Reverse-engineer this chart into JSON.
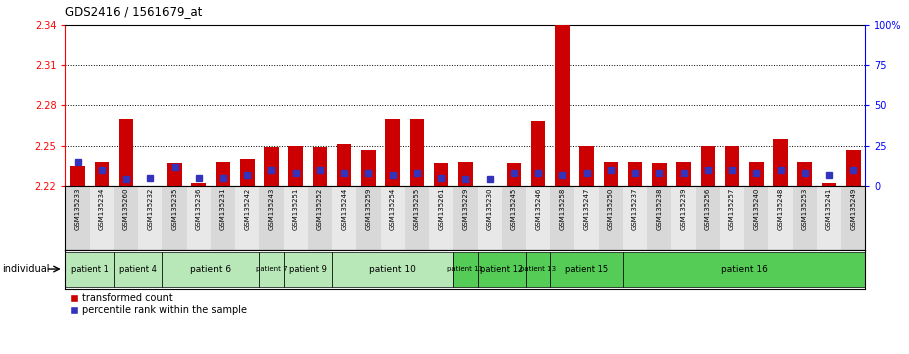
{
  "title": "GDS2416 / 1561679_at",
  "samples": [
    "GSM135233",
    "GSM135234",
    "GSM135260",
    "GSM135232",
    "GSM135235",
    "GSM135236",
    "GSM135231",
    "GSM135242",
    "GSM135243",
    "GSM135251",
    "GSM135252",
    "GSM135244",
    "GSM135259",
    "GSM135254",
    "GSM135255",
    "GSM135261",
    "GSM135229",
    "GSM135230",
    "GSM135245",
    "GSM135246",
    "GSM135258",
    "GSM135247",
    "GSM135250",
    "GSM135237",
    "GSM135238",
    "GSM135239",
    "GSM135256",
    "GSM135257",
    "GSM135240",
    "GSM135248",
    "GSM135253",
    "GSM135241",
    "GSM135249"
  ],
  "red_values": [
    2.235,
    2.238,
    2.27,
    2.22,
    2.237,
    2.222,
    2.238,
    2.24,
    2.249,
    2.25,
    2.249,
    2.251,
    2.247,
    2.27,
    2.27,
    2.237,
    2.238,
    2.22,
    2.237,
    2.268,
    2.34,
    2.25,
    2.238,
    2.238,
    2.237,
    2.238,
    2.25,
    2.25,
    2.238,
    2.255,
    2.238,
    2.222,
    2.247
  ],
  "blue_pct": [
    15,
    10,
    4,
    5,
    12,
    5,
    5,
    7,
    10,
    8,
    10,
    8,
    8,
    7,
    8,
    5,
    4,
    4,
    8,
    8,
    7,
    8,
    10,
    8,
    8,
    8,
    10,
    10,
    8,
    10,
    8,
    7,
    10
  ],
  "ymin": 2.22,
  "ymax": 2.34,
  "yticks_left": [
    2.22,
    2.25,
    2.28,
    2.31,
    2.34
  ],
  "yticks_right": [
    0,
    25,
    50,
    75,
    100
  ],
  "ytick_labels_right": [
    "0",
    "25",
    "50",
    "75",
    "100%"
  ],
  "bar_color": "#cc0000",
  "blue_color": "#3333bb",
  "patients": [
    {
      "label": "patient 1",
      "start": 0,
      "end": 2,
      "color": "#b8e8b8"
    },
    {
      "label": "patient 4",
      "start": 2,
      "end": 4,
      "color": "#b8e8b8"
    },
    {
      "label": "patient 6",
      "start": 4,
      "end": 8,
      "color": "#b8e8b8"
    },
    {
      "label": "patient 7",
      "start": 8,
      "end": 9,
      "color": "#b8e8b8"
    },
    {
      "label": "patient 9",
      "start": 9,
      "end": 11,
      "color": "#b8e8b8"
    },
    {
      "label": "patient 10",
      "start": 11,
      "end": 16,
      "color": "#b8e8b8"
    },
    {
      "label": "patient 11",
      "start": 16,
      "end": 17,
      "color": "#55cc55"
    },
    {
      "label": "patient 12",
      "start": 17,
      "end": 19,
      "color": "#55cc55"
    },
    {
      "label": "patient 13",
      "start": 19,
      "end": 20,
      "color": "#55cc55"
    },
    {
      "label": "patient 15",
      "start": 20,
      "end": 23,
      "color": "#55cc55"
    },
    {
      "label": "patient 16",
      "start": 23,
      "end": 33,
      "color": "#55cc55"
    }
  ],
  "legend_red": "transformed count",
  "legend_blue": "percentile rank within the sample",
  "individual_label": "individual",
  "grid_lines": [
    2.25,
    2.28,
    2.31
  ]
}
